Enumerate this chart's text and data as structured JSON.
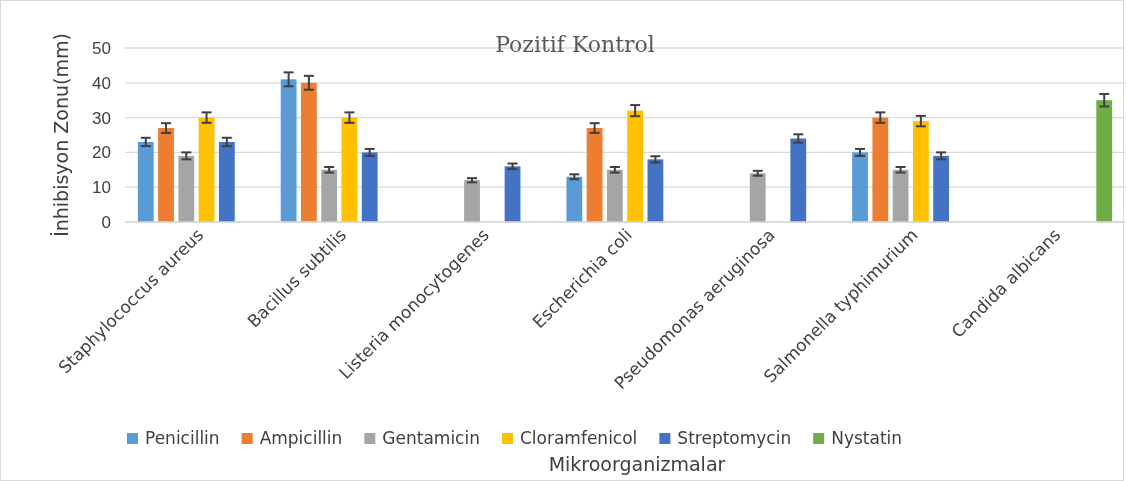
{
  "chart_data": {
    "type": "bar",
    "title": "Pozitif Kontrol",
    "xlabel": "Mikroorganizmalar",
    "ylabel": "İnhibisyon Zonu(mm)",
    "categories": [
      "Staphylococcus aureus",
      "Bacillus subtilis",
      "Listeria monocytogenes",
      "Escherichia coli",
      "Pseudomonas aeruginosa",
      "Salmonella typhimurium",
      "Candida albicans"
    ],
    "series": [
      {
        "name": "Penicillin",
        "color": "#5b9bd5",
        "values": [
          23,
          41,
          0,
          13,
          0,
          20,
          0
        ],
        "errors": [
          1.2,
          2,
          null,
          0.7,
          null,
          1,
          null
        ]
      },
      {
        "name": "Ampicillin",
        "color": "#ed7d31",
        "values": [
          27,
          40,
          0,
          27,
          0,
          30,
          0
        ],
        "errors": [
          1.4,
          2,
          null,
          1.4,
          null,
          1.5,
          null
        ]
      },
      {
        "name": "Gentamicin",
        "color": "#a5a5a5",
        "values": [
          19,
          15,
          12,
          15,
          14,
          15,
          0
        ],
        "errors": [
          1,
          0.8,
          0.6,
          0.8,
          0.7,
          0.8,
          null
        ]
      },
      {
        "name": "Cloramfenicol",
        "color": "#ffc000",
        "values": [
          30,
          30,
          0,
          32,
          0,
          29,
          0
        ],
        "errors": [
          1.5,
          1.5,
          null,
          1.6,
          null,
          1.5,
          null
        ]
      },
      {
        "name": "Streptomycin",
        "color": "#4472c4",
        "values": [
          23,
          20,
          16,
          18,
          24,
          19,
          0
        ],
        "errors": [
          1.2,
          1,
          0.8,
          0.9,
          1.2,
          1,
          null
        ]
      },
      {
        "name": "Nystatin",
        "color": "#70ad47",
        "values": [
          0,
          0,
          0,
          0,
          0,
          0,
          35
        ],
        "errors": [
          null,
          null,
          null,
          null,
          null,
          null,
          1.8
        ]
      }
    ],
    "ylim": [
      0,
      50
    ],
    "yticks": [
      0,
      10,
      20,
      30,
      40,
      50
    ],
    "grid": "y",
    "legend": "bottom"
  }
}
